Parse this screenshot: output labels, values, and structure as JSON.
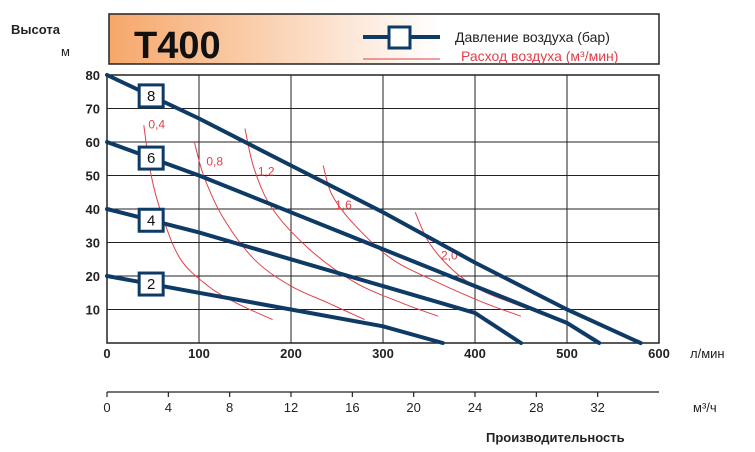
{
  "header": {
    "title": "T400",
    "legend": {
      "pressure_label": "Давление воздуха (бар)",
      "flow_label": "Расход воздуха (м³/мин)",
      "pressure_color": "#0e3a66",
      "flow_color": "#e0404a"
    },
    "colors": {
      "gradient_start": "#f6a76a",
      "gradient_end": "#ffffff"
    }
  },
  "chart_data": {
    "type": "line",
    "ylabel": "Высота",
    "yunit": "м",
    "xunit_primary": "л/мин",
    "xunit_secondary": "м³/ч",
    "xlabel": "Производительность",
    "xlim": [
      0,
      600
    ],
    "ylim": [
      0,
      80
    ],
    "x_ticks": [
      0,
      100,
      200,
      300,
      400,
      500,
      600
    ],
    "y_ticks": [
      10,
      20,
      30,
      40,
      50,
      60,
      70,
      80
    ],
    "x2_ticks": [
      0,
      4,
      8,
      12,
      16,
      20,
      24,
      28,
      32
    ],
    "grid": true,
    "pressure_series": [
      {
        "name": "8",
        "points": [
          [
            0,
            80
          ],
          [
            100,
            67
          ],
          [
            200,
            53
          ],
          [
            300,
            39
          ],
          [
            400,
            24
          ],
          [
            500,
            10
          ],
          [
            580,
            0
          ]
        ]
      },
      {
        "name": "6",
        "points": [
          [
            0,
            60
          ],
          [
            100,
            50
          ],
          [
            200,
            39
          ],
          [
            300,
            28
          ],
          [
            400,
            17
          ],
          [
            500,
            6
          ],
          [
            535,
            0
          ]
        ]
      },
      {
        "name": "4",
        "points": [
          [
            0,
            40
          ],
          [
            100,
            33
          ],
          [
            200,
            25
          ],
          [
            300,
            17
          ],
          [
            400,
            9
          ],
          [
            450,
            0
          ]
        ]
      },
      {
        "name": "2",
        "points": [
          [
            0,
            20
          ],
          [
            100,
            15
          ],
          [
            200,
            10
          ],
          [
            300,
            5
          ],
          [
            365,
            0
          ]
        ]
      }
    ],
    "flow_series": [
      {
        "name": "0,4",
        "points": [
          [
            40,
            65
          ],
          [
            48,
            50
          ],
          [
            60,
            38
          ],
          [
            80,
            25
          ],
          [
            110,
            17
          ],
          [
            140,
            12
          ],
          [
            180,
            7
          ]
        ],
        "label_at": [
          45,
          64
        ]
      },
      {
        "name": "0,8",
        "points": [
          [
            95,
            60
          ],
          [
            105,
            50
          ],
          [
            125,
            38
          ],
          [
            160,
            25
          ],
          [
            200,
            17
          ],
          [
            240,
            12
          ],
          [
            280,
            7
          ]
        ],
        "label_at": [
          108,
          53
        ]
      },
      {
        "name": "1,2",
        "points": [
          [
            150,
            64
          ],
          [
            160,
            52
          ],
          [
            180,
            40
          ],
          [
            220,
            28
          ],
          [
            270,
            18
          ],
          [
            320,
            12
          ],
          [
            360,
            8
          ]
        ],
        "label_at": [
          164,
          50
        ]
      },
      {
        "name": "1,6",
        "points": [
          [
            235,
            53
          ],
          [
            245,
            44
          ],
          [
            270,
            35
          ],
          [
            310,
            25
          ],
          [
            360,
            18
          ],
          [
            410,
            12
          ],
          [
            450,
            8
          ]
        ],
        "label_at": [
          248,
          40
        ]
      },
      {
        "name": "2,0",
        "points": [
          [
            335,
            39
          ],
          [
            350,
            30
          ],
          [
            375,
            22
          ],
          [
            405,
            16
          ],
          [
            440,
            12
          ],
          [
            470,
            9
          ],
          [
            495,
            7
          ]
        ],
        "label_at": [
          363,
          25
        ]
      }
    ]
  }
}
